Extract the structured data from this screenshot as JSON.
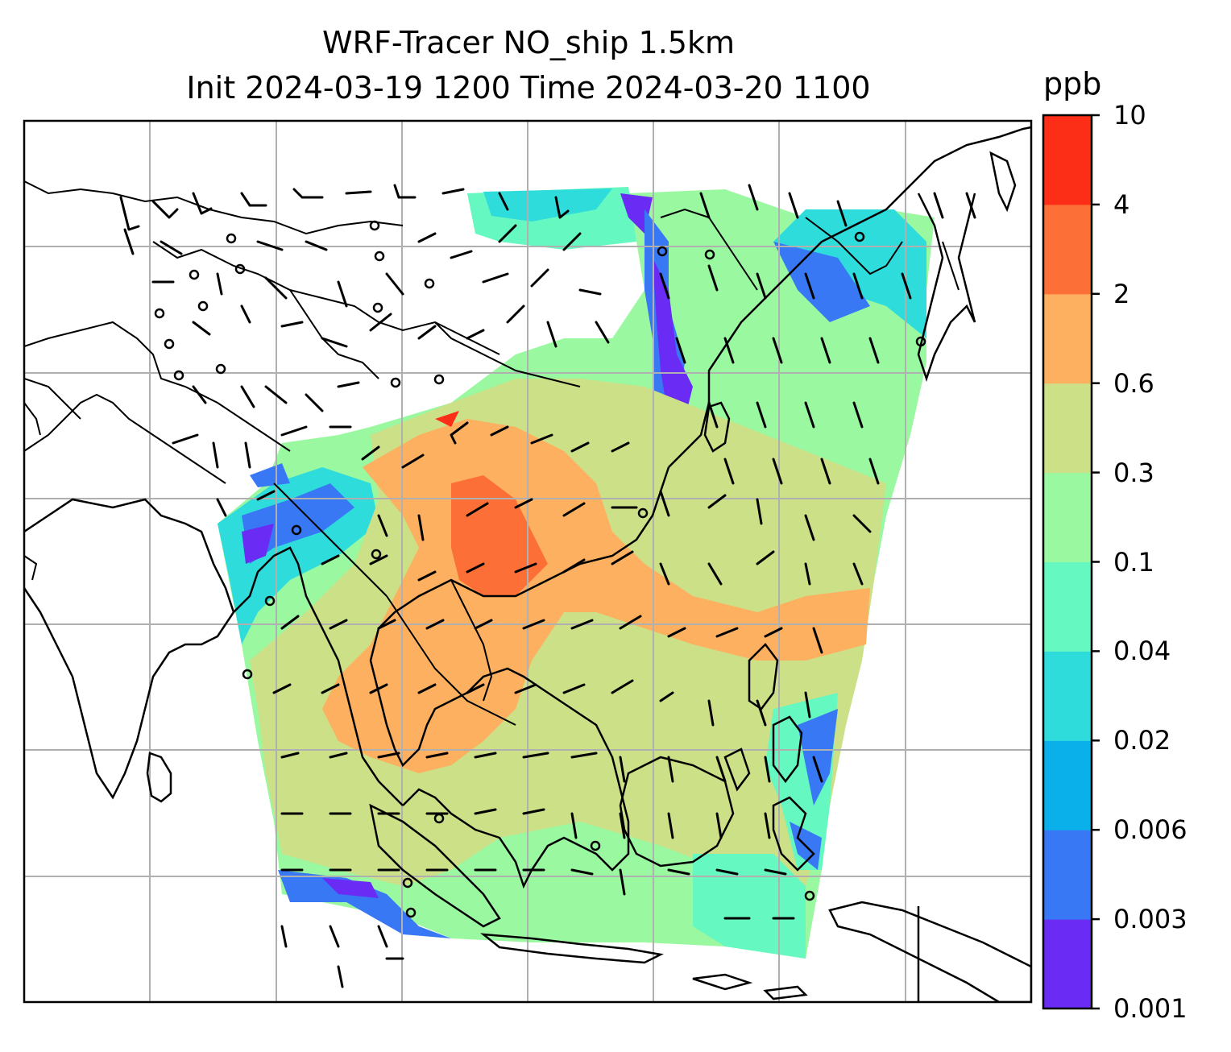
{
  "title_line_1": "WRF-Tracer NO_ship 1.5km",
  "title_line_2": "Init 2024-03-19 1200 Time 2024-03-20 1100",
  "colorbar": {
    "unit": "ppb",
    "levels": [
      "0.001",
      "0.003",
      "0.006",
      "0.02",
      "0.04",
      "0.1",
      "0.3",
      "0.6",
      "2",
      "4",
      "10"
    ],
    "colors": [
      "#6a2cf5",
      "#3878f5",
      "#0ab0ea",
      "#2fdcdc",
      "#65f8c0",
      "#9af8a0",
      "#cce088",
      "#fcb060",
      "#fc7038",
      "#fc2e18"
    ]
  },
  "map": {
    "grid": true,
    "features": [
      "coastlines",
      "country-borders",
      "wind-barbs",
      "calm-wind-circles",
      "ship-tracer-concentration"
    ]
  }
}
